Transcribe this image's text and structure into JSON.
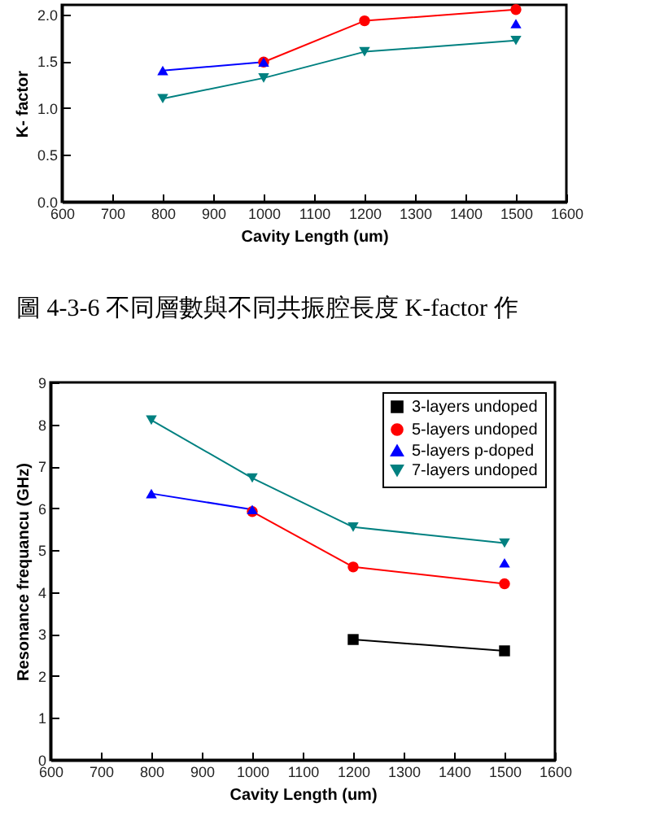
{
  "chart_data": [
    {
      "type": "line",
      "xlabel": "Cavity Length (um)",
      "ylabel": "K- factor",
      "annotations": [
        "圖 4-3-6 不同層數與不同共振腔長度 K-factor 作"
      ],
      "xlim": [
        600,
        1600
      ],
      "xticks": [
        600,
        700,
        800,
        900,
        1000,
        1100,
        1200,
        1300,
        1400,
        1500,
        1600
      ],
      "ylim": [
        0,
        2.1
      ],
      "yticks": [
        {
          "value": 0,
          "label": "0.0"
        },
        0.5,
        {
          "value": 1,
          "label": "1.0"
        },
        1.5,
        {
          "value": 2,
          "label": "2.0"
        }
      ],
      "grid": false,
      "legend": false,
      "line_style": "solid",
      "x": [
        800,
        1000,
        1200,
        1500
      ],
      "series": [
        {
          "color": "#ff0000",
          "marker": "circle",
          "values": [
            null,
            1.49,
            1.93,
            2.05
          ]
        },
        {
          "color": "#0000ff",
          "marker": "triangle",
          "values": [
            1.4,
            1.49,
            null,
            1.9
          ]
        },
        {
          "color": "#008080",
          "marker": "triangle-down",
          "values": [
            1.1,
            1.32,
            1.6,
            1.72
          ]
        }
      ]
    },
    {
      "type": "line",
      "xlabel": "Cavity Length (um)",
      "ylabel": "Resonance frequancu (GHz)",
      "xlim": [
        600,
        1600
      ],
      "xticks": [
        600,
        700,
        800,
        900,
        1000,
        1100,
        1200,
        1300,
        1400,
        1500,
        1600
      ],
      "ylim": [
        0,
        9
      ],
      "yticks": [
        0,
        1,
        2,
        3,
        4,
        5,
        6,
        7,
        8,
        9
      ],
      "grid": false,
      "legend": "top right",
      "line_style": "solid",
      "x": [
        800,
        1000,
        1200,
        1500
      ],
      "series": [
        {
          "name": "3-layers undoped",
          "color": "#000000",
          "marker": "square",
          "values": [
            null,
            null,
            2.87,
            2.6
          ]
        },
        {
          "name": "5-layers undoped",
          "color": "#ff0000",
          "marker": "circle",
          "values": [
            null,
            5.92,
            4.6,
            4.2
          ]
        },
        {
          "name": "5-layers p-doped",
          "color": "#0000ff",
          "marker": "triangle",
          "values": [
            6.35,
            5.97,
            null,
            4.7
          ]
        },
        {
          "name": "7-layers undoped",
          "color": "#008080",
          "marker": "triangle-down",
          "values": [
            8.1,
            6.72,
            5.55,
            5.17
          ]
        }
      ]
    }
  ]
}
